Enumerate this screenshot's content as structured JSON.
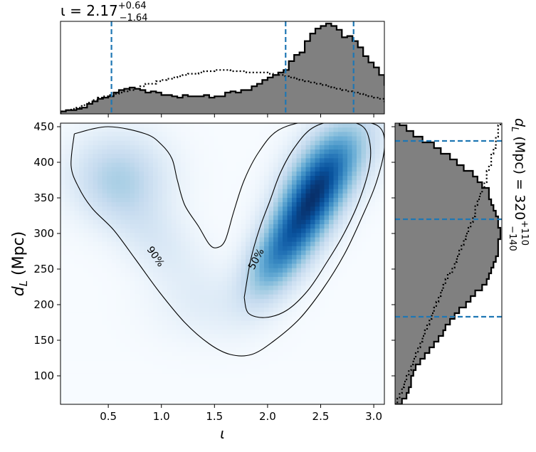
{
  "chart_data": {
    "type": "heatmap",
    "title": "",
    "top_annotation": {
      "prefix": "ι = 2.17",
      "sup": "+0.64",
      "sub": "−1.64"
    },
    "right_annotation": {
      "prefix": "d",
      "sub_L": "L",
      "mid": " (Mpc) = 320",
      "sup": "+110",
      "sub": "−140"
    },
    "xlabel": "ι",
    "ylabel_main": "d",
    "ylabel_sub": "L",
    "ylabel_unit": " (Mpc)",
    "xlim": [
      0.05,
      3.1
    ],
    "ylim": [
      60,
      455
    ],
    "x_ticks": [
      "0.5",
      "1.0",
      "1.5",
      "2.0",
      "2.5",
      "3.0"
    ],
    "x_tick_values": [
      0.5,
      1.0,
      1.5,
      2.0,
      2.5,
      3.0
    ],
    "y_ticks": [
      "100",
      "150",
      "200",
      "250",
      "300",
      "350",
      "400",
      "450"
    ],
    "y_tick_values": [
      100,
      150,
      200,
      250,
      300,
      350,
      400,
      450
    ],
    "contour_labels": [
      "90%",
      "50%"
    ],
    "contour_90": [
      [
        0.18,
        440
      ],
      [
        0.5,
        450
      ],
      [
        0.85,
        440
      ],
      [
        1.0,
        425
      ],
      [
        1.1,
        405
      ],
      [
        1.15,
        375
      ],
      [
        1.22,
        340
      ],
      [
        1.35,
        310
      ],
      [
        1.45,
        285
      ],
      [
        1.52,
        280
      ],
      [
        1.6,
        290
      ],
      [
        1.68,
        330
      ],
      [
        1.78,
        375
      ],
      [
        1.92,
        415
      ],
      [
        2.1,
        445
      ],
      [
        2.4,
        458
      ],
      [
        2.8,
        458
      ],
      [
        3.05,
        450
      ],
      [
        3.1,
        420
      ],
      [
        3.02,
        370
      ],
      [
        2.88,
        320
      ],
      [
        2.72,
        270
      ],
      [
        2.52,
        222
      ],
      [
        2.3,
        180
      ],
      [
        2.05,
        148
      ],
      [
        1.85,
        130
      ],
      [
        1.65,
        130
      ],
      [
        1.45,
        145
      ],
      [
        1.22,
        175
      ],
      [
        0.98,
        218
      ],
      [
        0.75,
        265
      ],
      [
        0.55,
        305
      ],
      [
        0.35,
        335
      ],
      [
        0.22,
        365
      ],
      [
        0.15,
        395
      ],
      [
        0.18,
        440
      ]
    ],
    "contour_50": [
      [
        1.78,
        210
      ],
      [
        1.84,
        262
      ],
      [
        1.92,
        305
      ],
      [
        2.02,
        345
      ],
      [
        2.12,
        385
      ],
      [
        2.25,
        420
      ],
      [
        2.42,
        448
      ],
      [
        2.65,
        458
      ],
      [
        2.88,
        452
      ],
      [
        2.96,
        430
      ],
      [
        2.96,
        395
      ],
      [
        2.86,
        345
      ],
      [
        2.72,
        300
      ],
      [
        2.56,
        260
      ],
      [
        2.38,
        220
      ],
      [
        2.18,
        192
      ],
      [
        1.98,
        182
      ],
      [
        1.82,
        188
      ],
      [
        1.78,
        210
      ]
    ],
    "density_blobs": [
      {
        "x": 2.38,
        "y": 335,
        "sx": 0.25,
        "sy": 55,
        "w": 1.0,
        "rho": 0.65
      },
      {
        "x": 2.6,
        "y": 400,
        "sx": 0.28,
        "sy": 45,
        "w": 0.45,
        "rho": 0.5
      },
      {
        "x": 2.05,
        "y": 260,
        "sx": 0.2,
        "sy": 40,
        "w": 0.4,
        "rho": 0.5
      },
      {
        "x": 0.6,
        "y": 380,
        "sx": 0.3,
        "sy": 40,
        "w": 0.3,
        "rho": 0.0
      },
      {
        "x": 0.9,
        "y": 300,
        "sx": 0.32,
        "sy": 50,
        "w": 0.13,
        "rho": -0.6
      },
      {
        "x": 1.45,
        "y": 200,
        "sx": 0.35,
        "sy": 35,
        "w": 0.08,
        "rho": 0.0
      }
    ],
    "top_hist": {
      "edges_start": 0.05,
      "bin_width": 0.05,
      "values": [
        2,
        3,
        3,
        4,
        5,
        8,
        10,
        12,
        13,
        14,
        17,
        19,
        20,
        21,
        20,
        19,
        17,
        18,
        17,
        15,
        15,
        14,
        13,
        15,
        14,
        14,
        14,
        15,
        13,
        14,
        14,
        17,
        18,
        17,
        19,
        19,
        22,
        24,
        27,
        29,
        31,
        33,
        35,
        42,
        47,
        49,
        58,
        64,
        68,
        70,
        72,
        70,
        67,
        61,
        62,
        58,
        53,
        46,
        41,
        37,
        31,
        23,
        17,
        11,
        6,
        2
      ],
      "prior_values": [
        2,
        3,
        4,
        5,
        7,
        9,
        11,
        13,
        14,
        15,
        16,
        17,
        18,
        19,
        20,
        22,
        24,
        24,
        26,
        27,
        28,
        29,
        30,
        31,
        32,
        32,
        33,
        34,
        34,
        35,
        35,
        35,
        34,
        34,
        34,
        33,
        33,
        33,
        33,
        32,
        31,
        31,
        30,
        29,
        28,
        27,
        26,
        25,
        24,
        23,
        22,
        21,
        20,
        19,
        18,
        17,
        16,
        15,
        14,
        13,
        12,
        10,
        8,
        6,
        4,
        2
      ]
    },
    "right_hist": {
      "edges_start": 60,
      "bin_width": 8,
      "values": [
        3,
        5,
        6,
        7,
        7,
        8,
        9,
        11,
        13,
        15,
        17,
        19,
        21,
        22,
        24,
        26,
        28,
        31,
        33,
        35,
        38,
        40,
        41,
        42,
        43,
        44,
        45,
        45,
        45,
        46,
        46,
        45,
        45,
        44,
        43,
        42,
        41,
        41,
        38,
        36,
        34,
        30,
        27,
        24,
        20,
        17,
        12,
        8,
        5,
        2
      ],
      "prior_values": [
        1,
        2,
        3,
        4,
        5,
        6,
        7,
        8,
        9,
        10,
        11,
        12,
        13,
        14,
        15,
        16,
        17,
        18,
        19,
        20,
        21,
        22,
        23,
        25,
        26,
        27,
        28,
        29,
        30,
        31,
        32,
        33,
        34,
        35,
        35,
        36,
        37,
        38,
        39,
        40,
        40,
        41,
        42,
        42,
        43,
        44,
        44,
        45,
        45,
        46
      ]
    },
    "x_quantile_lines": [
      0.53,
      2.17,
      2.81
    ],
    "y_quantile_lines": [
      183,
      320,
      430
    ],
    "line_color": "#1f77b4",
    "hist_fill": "#808080",
    "colormap": "Blues"
  }
}
